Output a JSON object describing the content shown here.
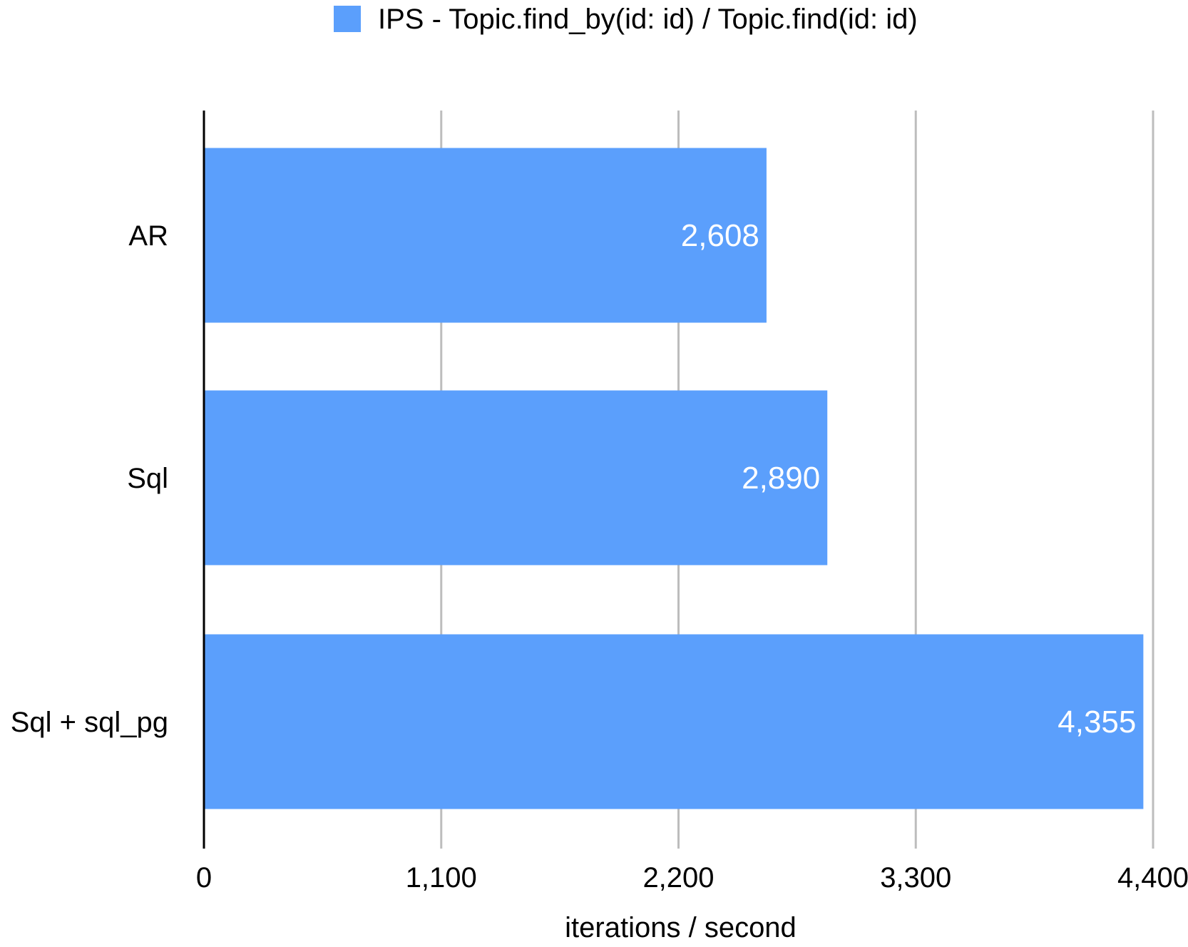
{
  "chart_data": {
    "type": "bar",
    "orientation": "horizontal",
    "categories": [
      "AR",
      "Sql",
      "Sql + sql_pg"
    ],
    "series": [
      {
        "name": "IPS - Topic.find_by(id: id) / Topic.find(id: id)",
        "values": [
          2608,
          2890,
          4355
        ],
        "data_labels": [
          "2,608",
          "2,890",
          "4,355"
        ],
        "color": "#5b9ffc"
      }
    ],
    "xlabel": "iterations / second",
    "ylabel": "",
    "xlim": [
      0,
      4400
    ],
    "ticks": [
      0,
      1100,
      2200,
      3300,
      4400
    ],
    "tick_labels": [
      "0",
      "1,100",
      "2,200",
      "3,300",
      "4,400"
    ],
    "grid": true,
    "legend": "top-center",
    "colors": {
      "bar": "#5b9ffc",
      "grid": "#bdbdbd",
      "axis": "#000000",
      "data_label": "#ffffff",
      "text": "#000000"
    }
  }
}
